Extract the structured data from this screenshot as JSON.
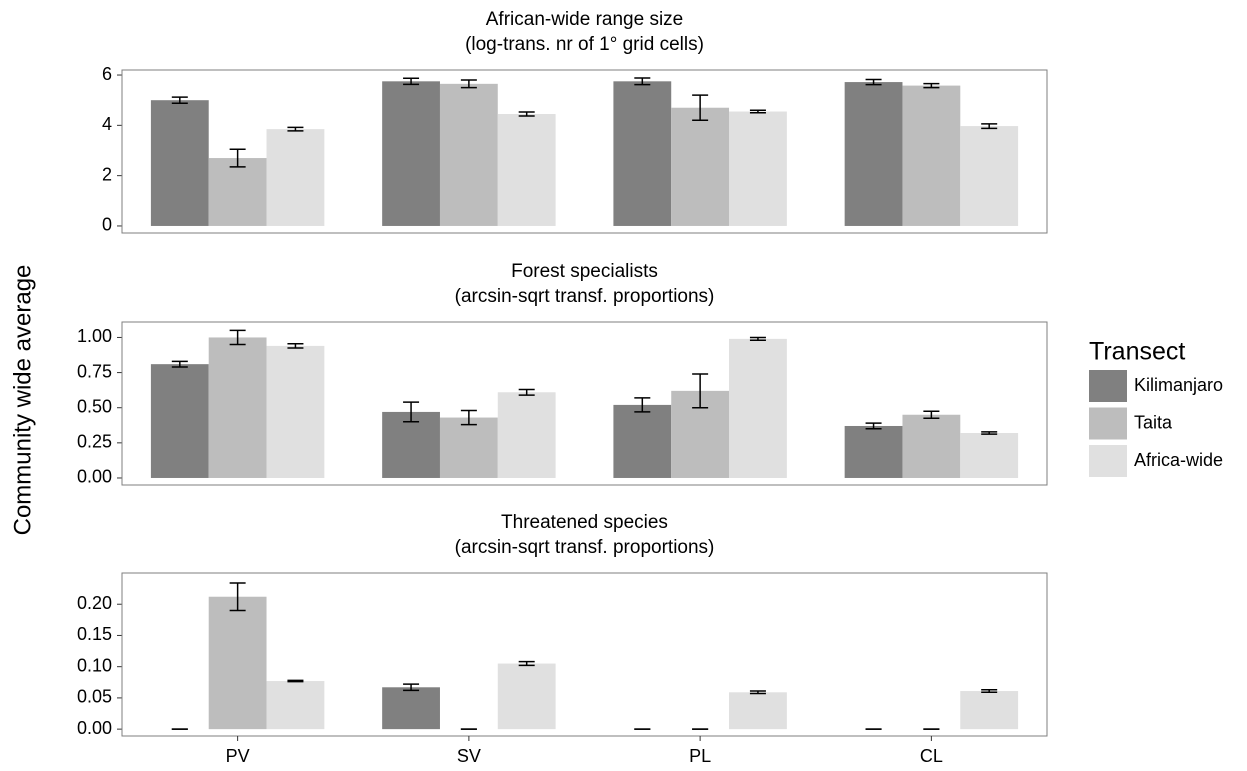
{
  "ylabel": "Community wide average",
  "legend": {
    "title": "Transect"
  },
  "categories": [
    "PV",
    "SV",
    "PL",
    "CL"
  ],
  "series": [
    {
      "name": "Kilimanjaro",
      "color": "#808080"
    },
    {
      "name": "Taita",
      "color": "#bdbdbd"
    },
    {
      "name": "Africa-wide",
      "color": "#e0e0e0"
    }
  ],
  "chart_data": [
    {
      "type": "bar",
      "title": "African-wide range size",
      "subtitle": "(log-trans. nr of 1° grid cells)",
      "ylim": [
        -0.28,
        6.2
      ],
      "yticks": [
        0,
        2,
        4,
        6
      ],
      "grid": false,
      "series": [
        {
          "values": [
            5.0,
            5.75,
            5.75,
            5.72
          ],
          "errors": [
            0.12,
            0.12,
            0.13,
            0.1
          ]
        },
        {
          "values": [
            2.7,
            5.65,
            4.7,
            5.58
          ],
          "errors": [
            0.35,
            0.15,
            0.5,
            0.08
          ]
        },
        {
          "values": [
            3.85,
            4.45,
            4.55,
            3.97
          ],
          "errors": [
            0.07,
            0.08,
            0.05,
            0.09
          ]
        }
      ]
    },
    {
      "type": "bar",
      "title": "Forest specialists",
      "subtitle": "(arcsin-sqrt transf. proportions)",
      "ylim": [
        -0.05,
        1.11
      ],
      "yticks": [
        {
          "value": 0,
          "label": "0.00"
        },
        {
          "value": 0.25,
          "label": "0.25"
        },
        {
          "value": 0.5,
          "label": "0.50"
        },
        {
          "value": 0.75,
          "label": "0.75"
        },
        {
          "value": 1,
          "label": "1.00"
        }
      ],
      "grid": false,
      "series": [
        {
          "values": [
            0.81,
            0.47,
            0.52,
            0.37
          ],
          "errors": [
            0.02,
            0.07,
            0.05,
            0.02
          ]
        },
        {
          "values": [
            1.0,
            0.43,
            0.62,
            0.45
          ],
          "errors": [
            0.05,
            0.05,
            0.12,
            0.025
          ]
        },
        {
          "values": [
            0.94,
            0.61,
            0.99,
            0.32
          ],
          "errors": [
            0.015,
            0.02,
            0.01,
            0.008
          ]
        }
      ]
    },
    {
      "type": "bar",
      "title": "Threatened species",
      "subtitle": "(arcsin-sqrt transf. proportions)",
      "ylim": [
        -0.011,
        0.25
      ],
      "yticks": [
        {
          "value": 0,
          "label": "0.00"
        },
        {
          "value": 0.05,
          "label": "0.05"
        },
        {
          "value": 0.1,
          "label": "0.10"
        },
        {
          "value": 0.15,
          "label": "0.15"
        },
        {
          "value": 0.2,
          "label": "0.20"
        }
      ],
      "grid": false,
      "series": [
        {
          "values": [
            0,
            0.067,
            0,
            0
          ],
          "errors": [
            0,
            0.005,
            0,
            0
          ]
        },
        {
          "values": [
            0.212,
            0,
            0,
            0
          ],
          "errors": [
            0.022,
            0,
            0,
            0
          ]
        },
        {
          "values": [
            0.077,
            0.105,
            0.059,
            0.061
          ],
          "errors": [
            0.001,
            0.003,
            0.002,
            0.002
          ]
        }
      ]
    }
  ]
}
